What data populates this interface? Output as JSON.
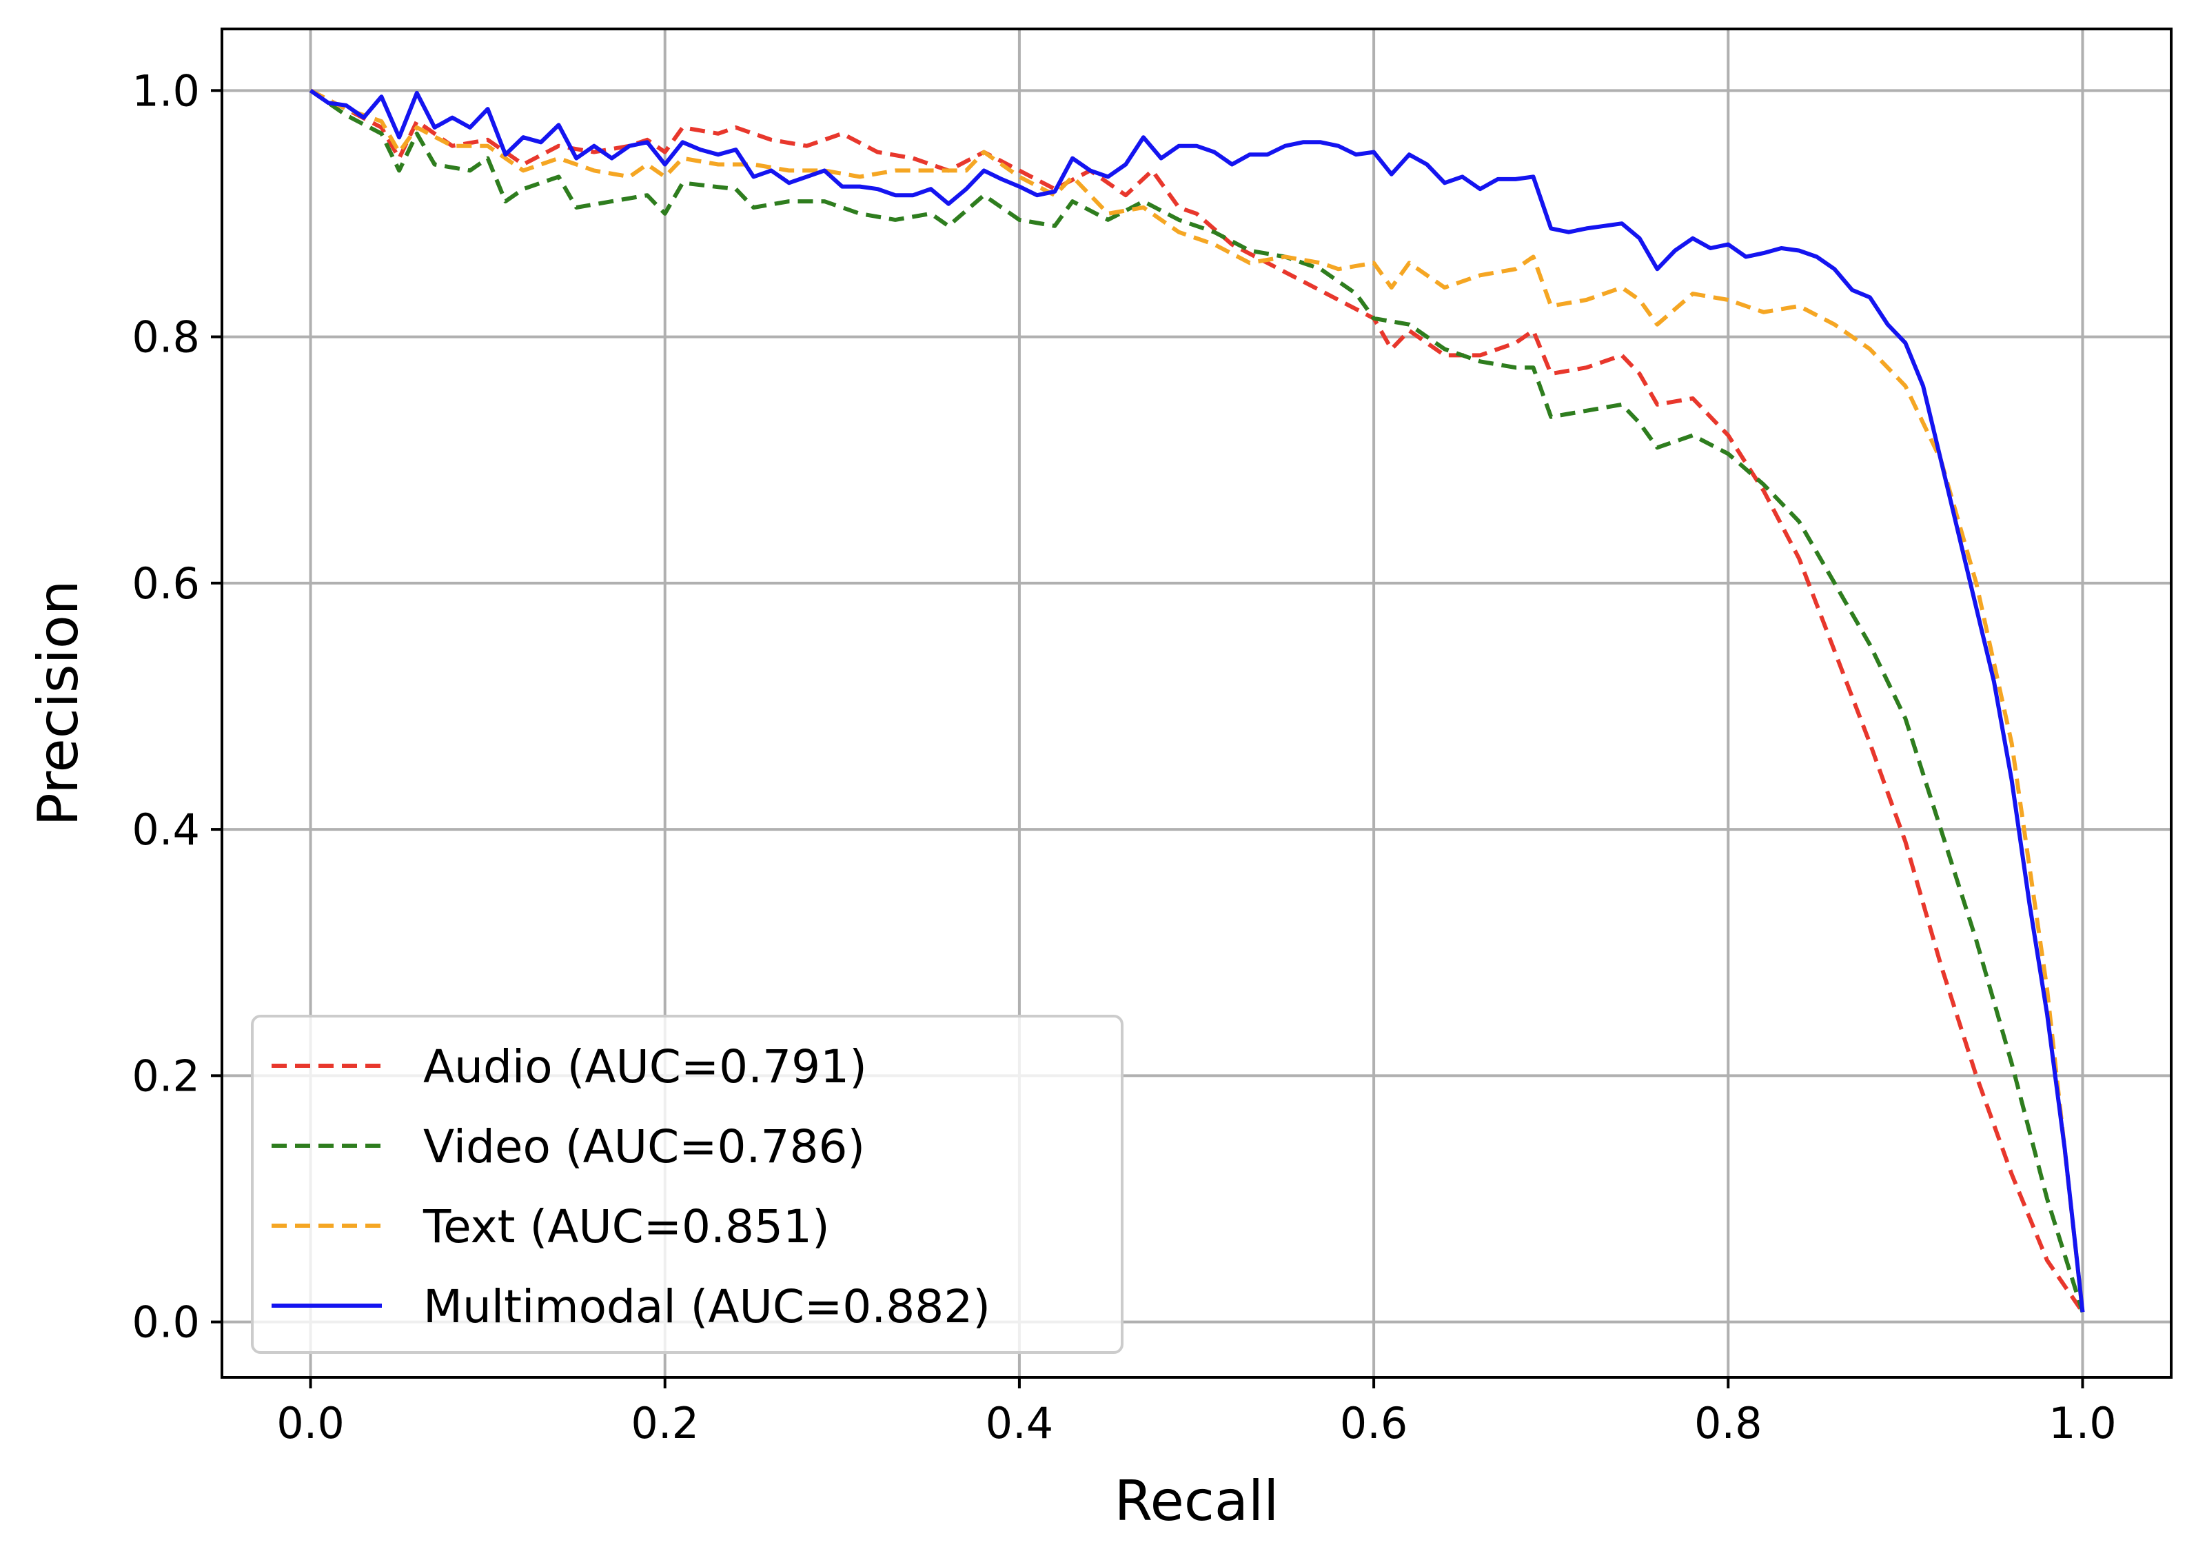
{
  "chart_data": {
    "type": "line",
    "title": "",
    "xlabel": "Recall",
    "ylabel": "Precision",
    "xlim": [
      -0.05,
      1.05
    ],
    "ylim": [
      -0.045,
      1.05
    ],
    "xticks": [
      0.0,
      0.2,
      0.4,
      0.6,
      0.8,
      1.0
    ],
    "yticks": [
      0.0,
      0.2,
      0.4,
      0.6,
      0.8,
      1.0
    ],
    "xtick_labels": [
      "0.0",
      "0.2",
      "0.4",
      "0.6",
      "0.8",
      "1.0"
    ],
    "ytick_labels": [
      "0.0",
      "0.2",
      "0.4",
      "0.6",
      "0.8",
      "1.0"
    ],
    "grid": true,
    "legend_position": "lower-left",
    "series": [
      {
        "name": "Audio (AUC=0.791)",
        "color": "#e8372c",
        "style": "dashed",
        "points": [
          [
            0.0,
            1.0
          ],
          [
            0.02,
            0.985
          ],
          [
            0.04,
            0.97
          ],
          [
            0.05,
            0.945
          ],
          [
            0.06,
            0.975
          ],
          [
            0.08,
            0.955
          ],
          [
            0.1,
            0.96
          ],
          [
            0.12,
            0.94
          ],
          [
            0.14,
            0.955
          ],
          [
            0.16,
            0.95
          ],
          [
            0.18,
            0.955
          ],
          [
            0.19,
            0.96
          ],
          [
            0.2,
            0.95
          ],
          [
            0.21,
            0.97
          ],
          [
            0.23,
            0.965
          ],
          [
            0.24,
            0.97
          ],
          [
            0.26,
            0.96
          ],
          [
            0.28,
            0.955
          ],
          [
            0.3,
            0.965
          ],
          [
            0.32,
            0.95
          ],
          [
            0.34,
            0.945
          ],
          [
            0.36,
            0.935
          ],
          [
            0.38,
            0.95
          ],
          [
            0.4,
            0.935
          ],
          [
            0.42,
            0.92
          ],
          [
            0.44,
            0.935
          ],
          [
            0.46,
            0.915
          ],
          [
            0.475,
            0.935
          ],
          [
            0.49,
            0.905
          ],
          [
            0.5,
            0.9
          ],
          [
            0.52,
            0.875
          ],
          [
            0.54,
            0.86
          ],
          [
            0.56,
            0.845
          ],
          [
            0.58,
            0.83
          ],
          [
            0.6,
            0.815
          ],
          [
            0.61,
            0.79
          ],
          [
            0.62,
            0.805
          ],
          [
            0.64,
            0.785
          ],
          [
            0.66,
            0.785
          ],
          [
            0.68,
            0.795
          ],
          [
            0.69,
            0.805
          ],
          [
            0.7,
            0.77
          ],
          [
            0.72,
            0.775
          ],
          [
            0.74,
            0.785
          ],
          [
            0.75,
            0.77
          ],
          [
            0.76,
            0.745
          ],
          [
            0.78,
            0.75
          ],
          [
            0.8,
            0.72
          ],
          [
            0.82,
            0.675
          ],
          [
            0.84,
            0.62
          ],
          [
            0.86,
            0.545
          ],
          [
            0.88,
            0.47
          ],
          [
            0.9,
            0.39
          ],
          [
            0.92,
            0.29
          ],
          [
            0.94,
            0.2
          ],
          [
            0.96,
            0.12
          ],
          [
            0.98,
            0.05
          ],
          [
            1.0,
            0.008
          ]
        ]
      },
      {
        "name": "Video (AUC=0.786)",
        "color": "#2e7d1e",
        "style": "dashed",
        "points": [
          [
            0.0,
            1.0
          ],
          [
            0.02,
            0.98
          ],
          [
            0.04,
            0.965
          ],
          [
            0.05,
            0.935
          ],
          [
            0.06,
            0.965
          ],
          [
            0.07,
            0.94
          ],
          [
            0.09,
            0.935
          ],
          [
            0.1,
            0.945
          ],
          [
            0.11,
            0.91
          ],
          [
            0.12,
            0.92
          ],
          [
            0.14,
            0.93
          ],
          [
            0.15,
            0.905
          ],
          [
            0.17,
            0.91
          ],
          [
            0.19,
            0.915
          ],
          [
            0.2,
            0.9
          ],
          [
            0.21,
            0.925
          ],
          [
            0.24,
            0.92
          ],
          [
            0.25,
            0.905
          ],
          [
            0.27,
            0.91
          ],
          [
            0.29,
            0.91
          ],
          [
            0.31,
            0.9
          ],
          [
            0.33,
            0.895
          ],
          [
            0.35,
            0.9
          ],
          [
            0.36,
            0.89
          ],
          [
            0.38,
            0.915
          ],
          [
            0.4,
            0.895
          ],
          [
            0.42,
            0.89
          ],
          [
            0.43,
            0.91
          ],
          [
            0.45,
            0.895
          ],
          [
            0.47,
            0.91
          ],
          [
            0.49,
            0.895
          ],
          [
            0.51,
            0.885
          ],
          [
            0.53,
            0.87
          ],
          [
            0.55,
            0.865
          ],
          [
            0.57,
            0.855
          ],
          [
            0.59,
            0.835
          ],
          [
            0.6,
            0.815
          ],
          [
            0.62,
            0.81
          ],
          [
            0.64,
            0.79
          ],
          [
            0.66,
            0.78
          ],
          [
            0.68,
            0.775
          ],
          [
            0.69,
            0.775
          ],
          [
            0.7,
            0.735
          ],
          [
            0.72,
            0.74
          ],
          [
            0.74,
            0.745
          ],
          [
            0.75,
            0.73
          ],
          [
            0.76,
            0.71
          ],
          [
            0.78,
            0.72
          ],
          [
            0.8,
            0.705
          ],
          [
            0.82,
            0.68
          ],
          [
            0.84,
            0.65
          ],
          [
            0.86,
            0.6
          ],
          [
            0.88,
            0.55
          ],
          [
            0.9,
            0.49
          ],
          [
            0.92,
            0.4
          ],
          [
            0.94,
            0.31
          ],
          [
            0.96,
            0.21
          ],
          [
            0.98,
            0.1
          ],
          [
            1.0,
            0.008
          ]
        ]
      },
      {
        "name": "Text (AUC=0.851)",
        "color": "#f5a623",
        "style": "dashed",
        "points": [
          [
            0.0,
            1.0
          ],
          [
            0.02,
            0.985
          ],
          [
            0.04,
            0.975
          ],
          [
            0.05,
            0.95
          ],
          [
            0.06,
            0.97
          ],
          [
            0.08,
            0.955
          ],
          [
            0.1,
            0.955
          ],
          [
            0.12,
            0.935
          ],
          [
            0.14,
            0.945
          ],
          [
            0.16,
            0.935
          ],
          [
            0.18,
            0.93
          ],
          [
            0.19,
            0.94
          ],
          [
            0.2,
            0.93
          ],
          [
            0.21,
            0.945
          ],
          [
            0.23,
            0.94
          ],
          [
            0.25,
            0.94
          ],
          [
            0.27,
            0.935
          ],
          [
            0.29,
            0.935
          ],
          [
            0.31,
            0.93
          ],
          [
            0.33,
            0.935
          ],
          [
            0.35,
            0.935
          ],
          [
            0.37,
            0.935
          ],
          [
            0.38,
            0.95
          ],
          [
            0.4,
            0.93
          ],
          [
            0.42,
            0.915
          ],
          [
            0.43,
            0.93
          ],
          [
            0.45,
            0.9
          ],
          [
            0.47,
            0.905
          ],
          [
            0.49,
            0.885
          ],
          [
            0.51,
            0.875
          ],
          [
            0.53,
            0.86
          ],
          [
            0.55,
            0.865
          ],
          [
            0.57,
            0.86
          ],
          [
            0.58,
            0.855
          ],
          [
            0.6,
            0.86
          ],
          [
            0.61,
            0.84
          ],
          [
            0.62,
            0.86
          ],
          [
            0.64,
            0.84
          ],
          [
            0.66,
            0.85
          ],
          [
            0.68,
            0.855
          ],
          [
            0.69,
            0.865
          ],
          [
            0.7,
            0.825
          ],
          [
            0.72,
            0.83
          ],
          [
            0.74,
            0.84
          ],
          [
            0.75,
            0.83
          ],
          [
            0.76,
            0.81
          ],
          [
            0.78,
            0.835
          ],
          [
            0.8,
            0.83
          ],
          [
            0.82,
            0.82
          ],
          [
            0.84,
            0.825
          ],
          [
            0.86,
            0.81
          ],
          [
            0.88,
            0.79
          ],
          [
            0.9,
            0.76
          ],
          [
            0.92,
            0.7
          ],
          [
            0.94,
            0.6
          ],
          [
            0.96,
            0.47
          ],
          [
            0.98,
            0.27
          ],
          [
            1.0,
            0.008
          ]
        ]
      },
      {
        "name": "Multimodal (AUC=0.882)",
        "color": "#1414f0",
        "style": "solid",
        "points": [
          [
            0.0,
            1.0
          ],
          [
            0.01,
            0.99
          ],
          [
            0.02,
            0.988
          ],
          [
            0.03,
            0.978
          ],
          [
            0.04,
            0.995
          ],
          [
            0.05,
            0.962
          ],
          [
            0.06,
            0.998
          ],
          [
            0.07,
            0.97
          ],
          [
            0.08,
            0.978
          ],
          [
            0.09,
            0.97
          ],
          [
            0.1,
            0.985
          ],
          [
            0.11,
            0.948
          ],
          [
            0.12,
            0.962
          ],
          [
            0.13,
            0.958
          ],
          [
            0.14,
            0.972
          ],
          [
            0.15,
            0.945
          ],
          [
            0.16,
            0.955
          ],
          [
            0.17,
            0.945
          ],
          [
            0.18,
            0.955
          ],
          [
            0.19,
            0.958
          ],
          [
            0.2,
            0.94
          ],
          [
            0.21,
            0.958
          ],
          [
            0.22,
            0.952
          ],
          [
            0.23,
            0.948
          ],
          [
            0.24,
            0.952
          ],
          [
            0.25,
            0.93
          ],
          [
            0.26,
            0.935
          ],
          [
            0.27,
            0.925
          ],
          [
            0.28,
            0.93
          ],
          [
            0.29,
            0.935
          ],
          [
            0.3,
            0.922
          ],
          [
            0.31,
            0.922
          ],
          [
            0.32,
            0.92
          ],
          [
            0.33,
            0.915
          ],
          [
            0.34,
            0.915
          ],
          [
            0.35,
            0.92
          ],
          [
            0.36,
            0.908
          ],
          [
            0.37,
            0.92
          ],
          [
            0.38,
            0.935
          ],
          [
            0.39,
            0.928
          ],
          [
            0.4,
            0.922
          ],
          [
            0.41,
            0.915
          ],
          [
            0.42,
            0.918
          ],
          [
            0.43,
            0.945
          ],
          [
            0.44,
            0.935
          ],
          [
            0.45,
            0.93
          ],
          [
            0.46,
            0.94
          ],
          [
            0.47,
            0.962
          ],
          [
            0.48,
            0.945
          ],
          [
            0.49,
            0.955
          ],
          [
            0.5,
            0.955
          ],
          [
            0.51,
            0.95
          ],
          [
            0.52,
            0.94
          ],
          [
            0.53,
            0.948
          ],
          [
            0.54,
            0.948
          ],
          [
            0.55,
            0.955
          ],
          [
            0.56,
            0.958
          ],
          [
            0.57,
            0.958
          ],
          [
            0.58,
            0.955
          ],
          [
            0.59,
            0.948
          ],
          [
            0.6,
            0.95
          ],
          [
            0.61,
            0.932
          ],
          [
            0.62,
            0.948
          ],
          [
            0.63,
            0.94
          ],
          [
            0.64,
            0.925
          ],
          [
            0.65,
            0.93
          ],
          [
            0.66,
            0.92
          ],
          [
            0.67,
            0.928
          ],
          [
            0.68,
            0.928
          ],
          [
            0.69,
            0.93
          ],
          [
            0.7,
            0.888
          ],
          [
            0.71,
            0.885
          ],
          [
            0.72,
            0.888
          ],
          [
            0.73,
            0.89
          ],
          [
            0.74,
            0.892
          ],
          [
            0.75,
            0.88
          ],
          [
            0.76,
            0.855
          ],
          [
            0.77,
            0.87
          ],
          [
            0.78,
            0.88
          ],
          [
            0.79,
            0.872
          ],
          [
            0.8,
            0.875
          ],
          [
            0.81,
            0.865
          ],
          [
            0.82,
            0.868
          ],
          [
            0.83,
            0.872
          ],
          [
            0.84,
            0.87
          ],
          [
            0.85,
            0.865
          ],
          [
            0.86,
            0.855
          ],
          [
            0.87,
            0.838
          ],
          [
            0.88,
            0.832
          ],
          [
            0.89,
            0.81
          ],
          [
            0.9,
            0.795
          ],
          [
            0.91,
            0.76
          ],
          [
            0.92,
            0.7
          ],
          [
            0.93,
            0.64
          ],
          [
            0.94,
            0.58
          ],
          [
            0.95,
            0.52
          ],
          [
            0.96,
            0.44
          ],
          [
            0.97,
            0.34
          ],
          [
            0.98,
            0.25
          ],
          [
            0.99,
            0.14
          ],
          [
            1.0,
            0.008
          ]
        ]
      }
    ]
  }
}
